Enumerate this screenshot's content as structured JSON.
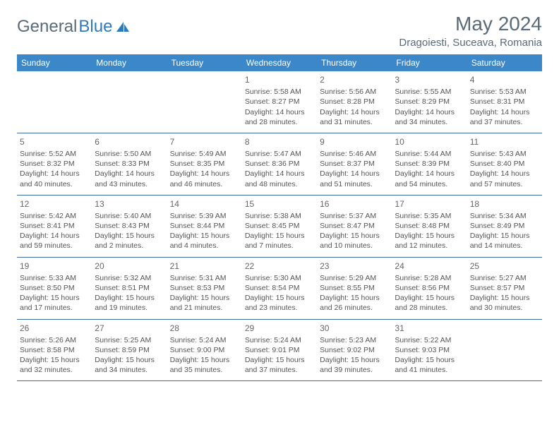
{
  "brand": {
    "part1": "General",
    "part2": "Blue"
  },
  "title": "May 2024",
  "location": "Dragoiesti, Suceava, Romania",
  "colors": {
    "header_bg": "#3b87c8",
    "header_text": "#ffffff",
    "border": "#3b6fa3",
    "text": "#555555",
    "title_color": "#5a6a78",
    "logo_blue": "#2f7abf"
  },
  "weekdays": [
    "Sunday",
    "Monday",
    "Tuesday",
    "Wednesday",
    "Thursday",
    "Friday",
    "Saturday"
  ],
  "weeks": [
    [
      null,
      null,
      null,
      {
        "n": "1",
        "sr": "Sunrise: 5:58 AM",
        "ss": "Sunset: 8:27 PM",
        "d1": "Daylight: 14 hours",
        "d2": "and 28 minutes."
      },
      {
        "n": "2",
        "sr": "Sunrise: 5:56 AM",
        "ss": "Sunset: 8:28 PM",
        "d1": "Daylight: 14 hours",
        "d2": "and 31 minutes."
      },
      {
        "n": "3",
        "sr": "Sunrise: 5:55 AM",
        "ss": "Sunset: 8:29 PM",
        "d1": "Daylight: 14 hours",
        "d2": "and 34 minutes."
      },
      {
        "n": "4",
        "sr": "Sunrise: 5:53 AM",
        "ss": "Sunset: 8:31 PM",
        "d1": "Daylight: 14 hours",
        "d2": "and 37 minutes."
      }
    ],
    [
      {
        "n": "5",
        "sr": "Sunrise: 5:52 AM",
        "ss": "Sunset: 8:32 PM",
        "d1": "Daylight: 14 hours",
        "d2": "and 40 minutes."
      },
      {
        "n": "6",
        "sr": "Sunrise: 5:50 AM",
        "ss": "Sunset: 8:33 PM",
        "d1": "Daylight: 14 hours",
        "d2": "and 43 minutes."
      },
      {
        "n": "7",
        "sr": "Sunrise: 5:49 AM",
        "ss": "Sunset: 8:35 PM",
        "d1": "Daylight: 14 hours",
        "d2": "and 46 minutes."
      },
      {
        "n": "8",
        "sr": "Sunrise: 5:47 AM",
        "ss": "Sunset: 8:36 PM",
        "d1": "Daylight: 14 hours",
        "d2": "and 48 minutes."
      },
      {
        "n": "9",
        "sr": "Sunrise: 5:46 AM",
        "ss": "Sunset: 8:37 PM",
        "d1": "Daylight: 14 hours",
        "d2": "and 51 minutes."
      },
      {
        "n": "10",
        "sr": "Sunrise: 5:44 AM",
        "ss": "Sunset: 8:39 PM",
        "d1": "Daylight: 14 hours",
        "d2": "and 54 minutes."
      },
      {
        "n": "11",
        "sr": "Sunrise: 5:43 AM",
        "ss": "Sunset: 8:40 PM",
        "d1": "Daylight: 14 hours",
        "d2": "and 57 minutes."
      }
    ],
    [
      {
        "n": "12",
        "sr": "Sunrise: 5:42 AM",
        "ss": "Sunset: 8:41 PM",
        "d1": "Daylight: 14 hours",
        "d2": "and 59 minutes."
      },
      {
        "n": "13",
        "sr": "Sunrise: 5:40 AM",
        "ss": "Sunset: 8:43 PM",
        "d1": "Daylight: 15 hours",
        "d2": "and 2 minutes."
      },
      {
        "n": "14",
        "sr": "Sunrise: 5:39 AM",
        "ss": "Sunset: 8:44 PM",
        "d1": "Daylight: 15 hours",
        "d2": "and 4 minutes."
      },
      {
        "n": "15",
        "sr": "Sunrise: 5:38 AM",
        "ss": "Sunset: 8:45 PM",
        "d1": "Daylight: 15 hours",
        "d2": "and 7 minutes."
      },
      {
        "n": "16",
        "sr": "Sunrise: 5:37 AM",
        "ss": "Sunset: 8:47 PM",
        "d1": "Daylight: 15 hours",
        "d2": "and 10 minutes."
      },
      {
        "n": "17",
        "sr": "Sunrise: 5:35 AM",
        "ss": "Sunset: 8:48 PM",
        "d1": "Daylight: 15 hours",
        "d2": "and 12 minutes."
      },
      {
        "n": "18",
        "sr": "Sunrise: 5:34 AM",
        "ss": "Sunset: 8:49 PM",
        "d1": "Daylight: 15 hours",
        "d2": "and 14 minutes."
      }
    ],
    [
      {
        "n": "19",
        "sr": "Sunrise: 5:33 AM",
        "ss": "Sunset: 8:50 PM",
        "d1": "Daylight: 15 hours",
        "d2": "and 17 minutes."
      },
      {
        "n": "20",
        "sr": "Sunrise: 5:32 AM",
        "ss": "Sunset: 8:51 PM",
        "d1": "Daylight: 15 hours",
        "d2": "and 19 minutes."
      },
      {
        "n": "21",
        "sr": "Sunrise: 5:31 AM",
        "ss": "Sunset: 8:53 PM",
        "d1": "Daylight: 15 hours",
        "d2": "and 21 minutes."
      },
      {
        "n": "22",
        "sr": "Sunrise: 5:30 AM",
        "ss": "Sunset: 8:54 PM",
        "d1": "Daylight: 15 hours",
        "d2": "and 23 minutes."
      },
      {
        "n": "23",
        "sr": "Sunrise: 5:29 AM",
        "ss": "Sunset: 8:55 PM",
        "d1": "Daylight: 15 hours",
        "d2": "and 26 minutes."
      },
      {
        "n": "24",
        "sr": "Sunrise: 5:28 AM",
        "ss": "Sunset: 8:56 PM",
        "d1": "Daylight: 15 hours",
        "d2": "and 28 minutes."
      },
      {
        "n": "25",
        "sr": "Sunrise: 5:27 AM",
        "ss": "Sunset: 8:57 PM",
        "d1": "Daylight: 15 hours",
        "d2": "and 30 minutes."
      }
    ],
    [
      {
        "n": "26",
        "sr": "Sunrise: 5:26 AM",
        "ss": "Sunset: 8:58 PM",
        "d1": "Daylight: 15 hours",
        "d2": "and 32 minutes."
      },
      {
        "n": "27",
        "sr": "Sunrise: 5:25 AM",
        "ss": "Sunset: 8:59 PM",
        "d1": "Daylight: 15 hours",
        "d2": "and 34 minutes."
      },
      {
        "n": "28",
        "sr": "Sunrise: 5:24 AM",
        "ss": "Sunset: 9:00 PM",
        "d1": "Daylight: 15 hours",
        "d2": "and 35 minutes."
      },
      {
        "n": "29",
        "sr": "Sunrise: 5:24 AM",
        "ss": "Sunset: 9:01 PM",
        "d1": "Daylight: 15 hours",
        "d2": "and 37 minutes."
      },
      {
        "n": "30",
        "sr": "Sunrise: 5:23 AM",
        "ss": "Sunset: 9:02 PM",
        "d1": "Daylight: 15 hours",
        "d2": "and 39 minutes."
      },
      {
        "n": "31",
        "sr": "Sunrise: 5:22 AM",
        "ss": "Sunset: 9:03 PM",
        "d1": "Daylight: 15 hours",
        "d2": "and 41 minutes."
      },
      null
    ]
  ]
}
